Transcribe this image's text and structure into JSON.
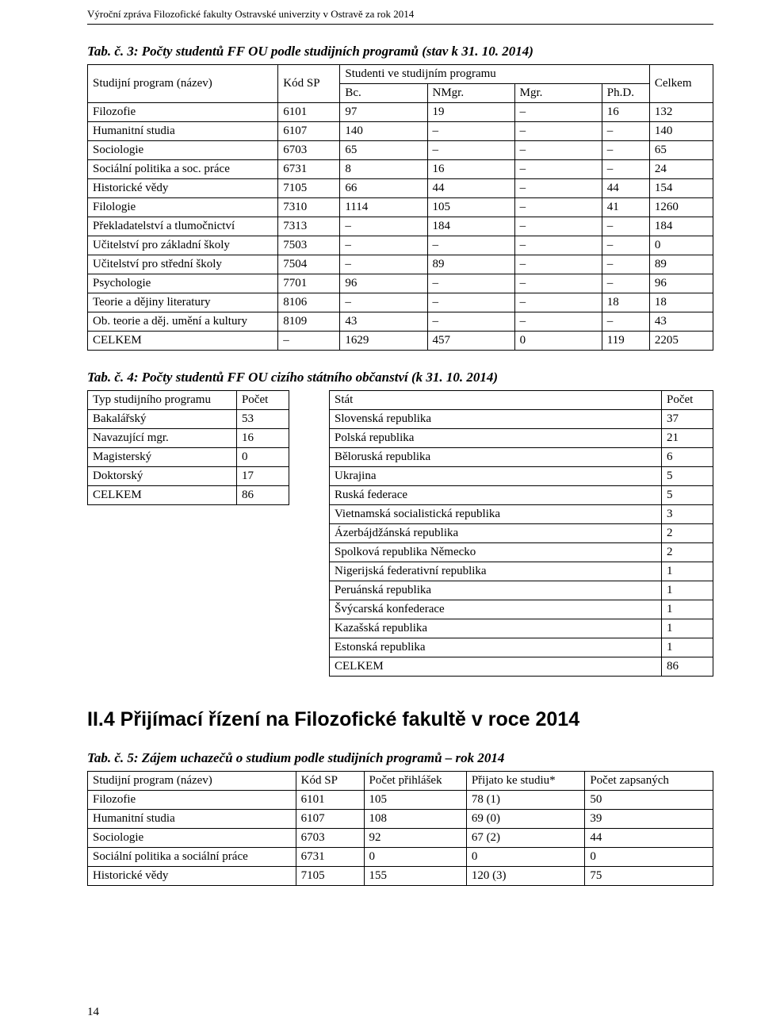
{
  "header": "Výroční zpráva Filozofické fakulty Ostravské univerzity v Ostravě za rok 2014",
  "tab3_caption": "Tab. č. 3: Počty studentů FF OU podle studijních programů (stav k 31. 10. 2014)",
  "table3": {
    "head": {
      "name": "Studijní program (název)",
      "code": "Kód SP",
      "students_in_program": "Studenti ve studijním programu",
      "total": "Celkem",
      "bc": "Bc.",
      "nmgr": "NMgr.",
      "mgr": "Mgr.",
      "phd": "Ph.D."
    },
    "rows": [
      [
        "Filozofie",
        "6101",
        "97",
        "19",
        "–",
        "16",
        "132"
      ],
      [
        "Humanitní studia",
        "6107",
        "140",
        "–",
        "–",
        "–",
        "140"
      ],
      [
        "Sociologie",
        "6703",
        "65",
        "–",
        "–",
        "–",
        "65"
      ],
      [
        "Sociální politika a soc. práce",
        "6731",
        "8",
        "16",
        "–",
        "–",
        "24"
      ],
      [
        "Historické vědy",
        "7105",
        "66",
        "44",
        "–",
        "44",
        "154"
      ],
      [
        "Filologie",
        "7310",
        "1114",
        "105",
        "–",
        "41",
        "1260"
      ],
      [
        "Překladatelství a tlumočnictví",
        "7313",
        "–",
        "184",
        "–",
        "–",
        "184"
      ],
      [
        "Učitelství pro základní školy",
        "7503",
        "–",
        "–",
        "–",
        "–",
        "0"
      ],
      [
        "Učitelství pro střední školy",
        "7504",
        "–",
        "89",
        "–",
        "–",
        "89"
      ],
      [
        "Psychologie",
        "7701",
        "96",
        "–",
        "–",
        "–",
        "96"
      ],
      [
        "Teorie a dějiny literatury",
        "8106",
        "–",
        "–",
        "–",
        "18",
        "18"
      ],
      [
        "Ob. teorie a děj. umění a kultury",
        "8109",
        "43",
        "–",
        "–",
        "–",
        "43"
      ],
      [
        "CELKEM",
        "–",
        "1629",
        "457",
        "0",
        "119",
        "2205"
      ]
    ]
  },
  "tab4_caption": "Tab. č. 4: Počty studentů FF OU cizího státního občanství (k 31. 10. 2014)",
  "table4_left": {
    "head": {
      "type": "Typ studijního programu",
      "count": "Počet"
    },
    "rows": [
      [
        "Bakalářský",
        "53"
      ],
      [
        "Navazující mgr.",
        "16"
      ],
      [
        "Magisterský",
        "0"
      ],
      [
        "Doktorský",
        "17"
      ],
      [
        "CELKEM",
        "86"
      ]
    ]
  },
  "table4_right": {
    "head": {
      "state": "Stát",
      "count": "Počet"
    },
    "rows": [
      [
        "Slovenská republika",
        "37"
      ],
      [
        "Polská republika",
        "21"
      ],
      [
        "Běloruská republika",
        "6"
      ],
      [
        "Ukrajina",
        "5"
      ],
      [
        "Ruská federace",
        "5"
      ],
      [
        "Vietnamská socialistická republika",
        "3"
      ],
      [
        "Ázerbájdžánská republika",
        "2"
      ],
      [
        "Spolková republika Německo",
        "2"
      ],
      [
        "Nigerijská federativní republika",
        "1"
      ],
      [
        "Peruánská republika",
        "1"
      ],
      [
        "Švýcarská konfederace",
        "1"
      ],
      [
        "Kazašská republika",
        "1"
      ],
      [
        "Estonská republika",
        "1"
      ],
      [
        "CELKEM",
        "86"
      ]
    ]
  },
  "section_heading": "II.4 Přijímací řízení na Filozofické fakultě v roce 2014",
  "tab5_caption": "Tab. č. 5: Zájem uchazečů o studium podle studijních programů – rok 2014",
  "table5": {
    "head": {
      "name": "Studijní program (název)",
      "code": "Kód SP",
      "applications": "Počet přihlášek",
      "admitted": "Přijato ke studiu*",
      "enrolled": "Počet zapsaných"
    },
    "rows": [
      [
        "Filozofie",
        "6101",
        "105",
        "78 (1)",
        "50"
      ],
      [
        "Humanitní studia",
        "6107",
        "108",
        "69 (0)",
        "39"
      ],
      [
        "Sociologie",
        "6703",
        "92",
        "67 (2)",
        "44"
      ],
      [
        "Sociální politika a sociální práce",
        "6731",
        "0",
        "0",
        "0"
      ],
      [
        "Historické vědy",
        "7105",
        "155",
        "120 (3)",
        "75"
      ]
    ]
  },
  "page_number": "14"
}
